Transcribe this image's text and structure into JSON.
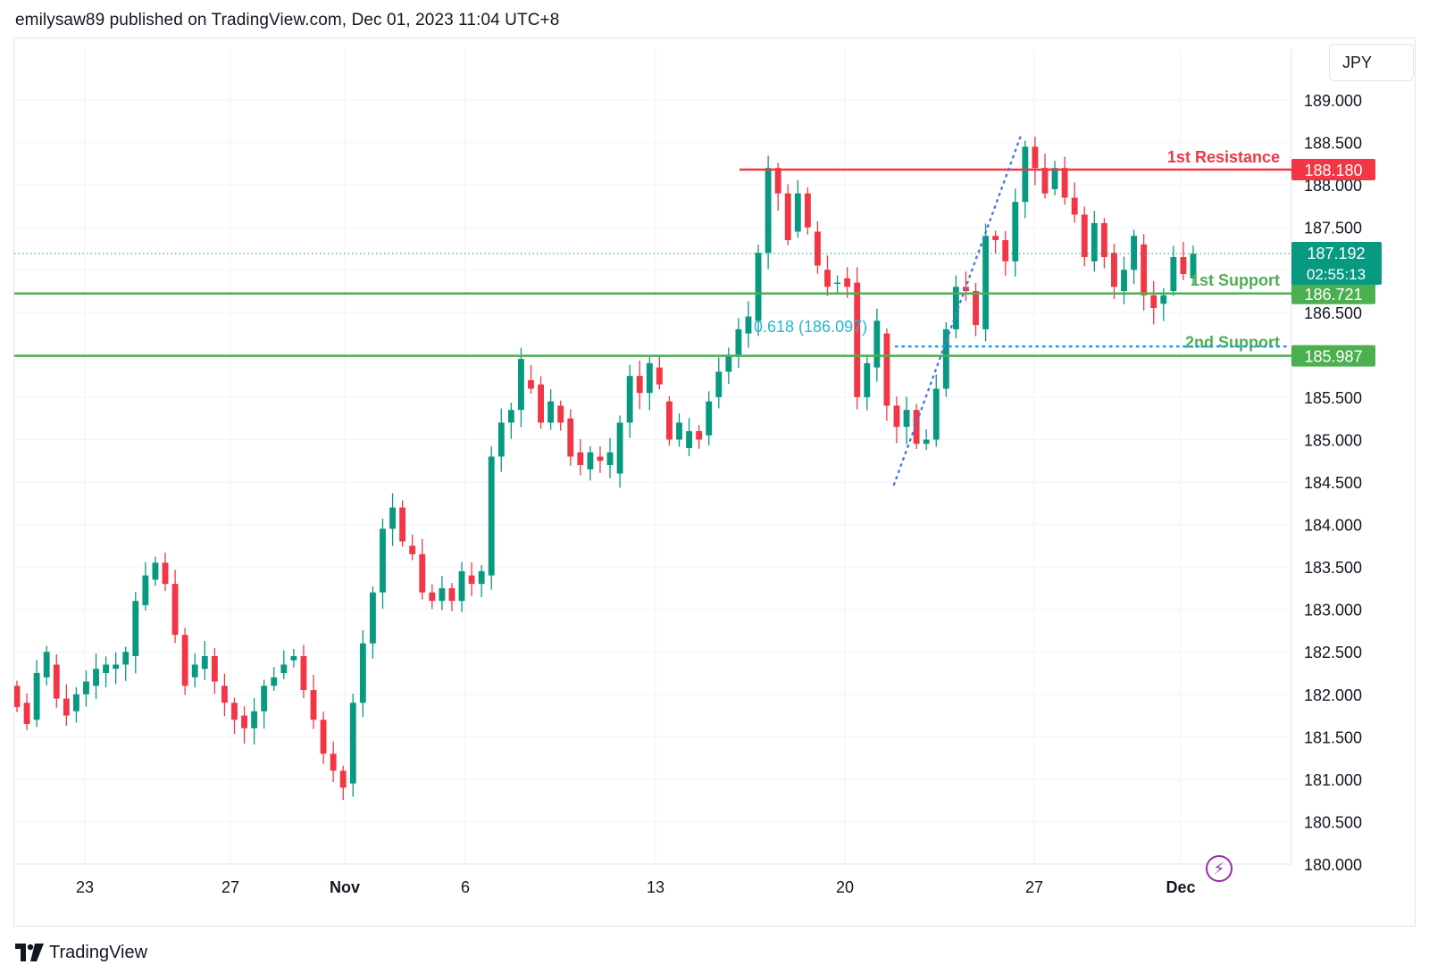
{
  "header": {
    "published_text": "emilysaw89 published on TradingView.com, Dec 01, 2023 11:04 UTC+8"
  },
  "currency": "JPY",
  "footer": {
    "brand": "TradingView",
    "logo_icon": "tradingview-logo-icon"
  },
  "colors": {
    "up": "#089981",
    "down": "#f23645",
    "resistance": "#f23645",
    "support": "#4caf50",
    "fib": "#2196f3",
    "fib_label": "#22b8cf",
    "grid": "#f0f3fa"
  },
  "chart_data": {
    "type": "candlestick",
    "title": "",
    "x_axis_ticks": [
      "23",
      "27",
      "Nov",
      "6",
      "13",
      "20",
      "27",
      "Dec"
    ],
    "y_axis_ticks": [
      "180.000",
      "180.500",
      "181.000",
      "181.500",
      "182.000",
      "182.500",
      "183.000",
      "183.500",
      "184.000",
      "184.500",
      "185.000",
      "185.500",
      "186.000",
      "186.500",
      "187.000",
      "187.500",
      "188.000",
      "188.500",
      "189.000"
    ],
    "ylim": [
      180.0,
      189.6
    ],
    "last_price": "187.192",
    "countdown": "02:55:13",
    "levels": [
      {
        "name": "1st Resistance",
        "value": 188.18,
        "label": "188.180",
        "kind": "resistance"
      },
      {
        "name": "1st Support",
        "value": 186.721,
        "label": "186.721",
        "kind": "support"
      },
      {
        "name": "2nd Support",
        "value": 185.987,
        "label": "185.987",
        "kind": "support"
      }
    ],
    "fib_label": "0.618 (186.097)",
    "fib_value": 186.097,
    "fib_swing": {
      "low": 184.47,
      "high": 188.58
    },
    "price_path": [
      [
        182.1,
        181.85
      ],
      [
        181.9,
        181.65
      ],
      [
        181.7,
        182.25
      ],
      [
        182.2,
        182.5
      ],
      [
        182.35,
        181.95
      ],
      [
        181.95,
        181.75
      ],
      [
        181.8,
        182.0
      ],
      [
        182.0,
        182.15
      ],
      [
        182.1,
        182.3
      ],
      [
        182.25,
        182.35
      ],
      [
        182.3,
        182.35
      ],
      [
        182.35,
        182.5
      ],
      [
        182.45,
        183.1
      ],
      [
        183.05,
        183.4
      ],
      [
        183.35,
        183.55
      ],
      [
        183.55,
        183.3
      ],
      [
        183.3,
        182.7
      ],
      [
        182.7,
        182.1
      ],
      [
        182.2,
        182.35
      ],
      [
        182.3,
        182.45
      ],
      [
        182.45,
        182.15
      ],
      [
        182.1,
        181.9
      ],
      [
        181.9,
        181.7
      ],
      [
        181.75,
        181.6
      ],
      [
        181.6,
        181.8
      ],
      [
        181.8,
        182.1
      ],
      [
        182.1,
        182.2
      ],
      [
        182.25,
        182.35
      ],
      [
        182.4,
        182.45
      ],
      [
        182.45,
        182.05
      ],
      [
        182.05,
        181.7
      ],
      [
        181.7,
        181.3
      ],
      [
        181.3,
        181.1
      ],
      [
        181.1,
        180.9
      ],
      [
        180.95,
        181.9
      ],
      [
        181.9,
        182.6
      ],
      [
        182.6,
        183.2
      ],
      [
        183.2,
        183.95
      ],
      [
        183.95,
        184.2
      ],
      [
        184.2,
        183.8
      ],
      [
        183.75,
        183.65
      ],
      [
        183.65,
        183.2
      ],
      [
        183.2,
        183.1
      ],
      [
        183.1,
        183.25
      ],
      [
        183.25,
        183.1
      ],
      [
        183.1,
        183.45
      ],
      [
        183.4,
        183.3
      ],
      [
        183.3,
        183.45
      ],
      [
        183.4,
        184.8
      ],
      [
        184.8,
        185.2
      ],
      [
        185.2,
        185.35
      ],
      [
        185.35,
        185.95
      ],
      [
        185.7,
        185.6
      ],
      [
        185.65,
        185.2
      ],
      [
        185.2,
        185.45
      ],
      [
        185.4,
        185.2
      ],
      [
        185.25,
        184.8
      ],
      [
        184.85,
        184.7
      ],
      [
        184.65,
        184.85
      ],
      [
        184.8,
        184.75
      ],
      [
        184.7,
        184.85
      ],
      [
        184.6,
        185.2
      ],
      [
        185.2,
        185.75
      ],
      [
        185.75,
        185.55
      ],
      [
        185.55,
        185.9
      ],
      [
        185.85,
        185.65
      ],
      [
        185.45,
        185.0
      ],
      [
        185.0,
        185.2
      ],
      [
        184.9,
        185.1
      ],
      [
        185.1,
        185.0
      ],
      [
        185.05,
        185.45
      ],
      [
        185.5,
        185.8
      ],
      [
        185.8,
        186.0
      ],
      [
        186.0,
        186.3
      ],
      [
        186.25,
        186.45
      ],
      [
        186.4,
        187.2
      ],
      [
        187.2,
        188.2
      ],
      [
        188.2,
        187.9
      ],
      [
        187.9,
        187.35
      ],
      [
        187.45,
        187.9
      ],
      [
        187.9,
        187.5
      ],
      [
        187.45,
        187.05
      ],
      [
        187.0,
        186.8
      ],
      [
        186.85,
        186.85
      ],
      [
        186.9,
        186.8
      ],
      [
        186.85,
        185.5
      ],
      [
        185.5,
        185.9
      ],
      [
        185.85,
        186.4
      ],
      [
        186.25,
        185.4
      ],
      [
        185.4,
        185.15
      ],
      [
        185.15,
        185.35
      ],
      [
        185.35,
        184.95
      ],
      [
        184.95,
        185.0
      ],
      [
        185.0,
        185.6
      ],
      [
        185.6,
        186.3
      ],
      [
        186.3,
        186.8
      ],
      [
        186.8,
        186.75
      ],
      [
        186.75,
        186.35
      ],
      [
        186.3,
        187.4
      ],
      [
        187.4,
        187.35
      ],
      [
        187.35,
        187.1
      ],
      [
        187.1,
        187.8
      ],
      [
        187.8,
        188.45
      ],
      [
        188.45,
        188.2
      ],
      [
        188.2,
        187.9
      ],
      [
        187.95,
        188.2
      ],
      [
        188.2,
        187.85
      ],
      [
        187.85,
        187.65
      ],
      [
        187.65,
        187.15
      ],
      [
        187.1,
        187.55
      ],
      [
        187.55,
        187.15
      ],
      [
        187.2,
        186.8
      ],
      [
        186.75,
        187.0
      ],
      [
        187.0,
        187.4
      ],
      [
        187.3,
        186.7
      ],
      [
        186.7,
        186.55
      ],
      [
        186.6,
        186.7
      ],
      [
        186.75,
        187.15
      ],
      [
        187.15,
        186.95
      ],
      [
        186.9,
        187.19
      ]
    ]
  }
}
